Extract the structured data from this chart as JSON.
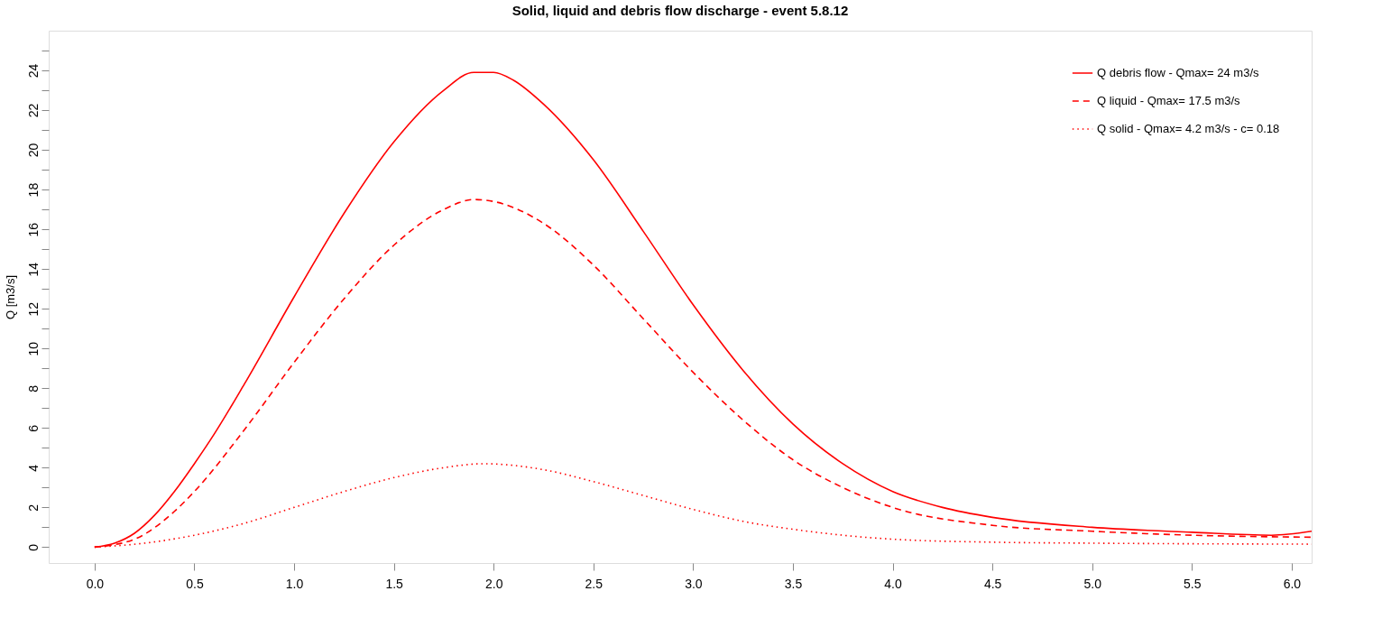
{
  "chart_data": {
    "type": "line",
    "title": "Solid, liquid and debris flow discharge - event 5.8.12",
    "ylabel": "Q [m3/s]",
    "xlim": [
      -0.23,
      6.1
    ],
    "xticks": [
      {
        "value": 0,
        "label": "0.0"
      },
      0.5,
      {
        "value": 1,
        "label": "1.0"
      },
      1.5,
      {
        "value": 2,
        "label": "2.0"
      },
      2.5,
      {
        "value": 3,
        "label": "3.0"
      },
      3.5,
      {
        "value": 4,
        "label": "4.0"
      },
      4.5,
      {
        "value": 5,
        "label": "5.0"
      },
      5.5,
      {
        "value": 6,
        "label": "6.0"
      }
    ],
    "ylim": [
      -0.8,
      26
    ],
    "yticks": [
      0,
      {
        "value": 1,
        "label": null
      },
      2,
      {
        "value": 3,
        "label": null
      },
      4,
      {
        "value": 5,
        "label": null
      },
      6,
      {
        "value": 7,
        "label": null
      },
      8,
      {
        "value": 9,
        "label": null
      },
      10,
      {
        "value": 11,
        "label": null
      },
      12,
      {
        "value": 13,
        "label": null
      },
      14,
      {
        "value": 15,
        "label": null
      },
      16,
      {
        "value": 17,
        "label": null
      },
      18,
      {
        "value": 19,
        "label": null
      },
      20,
      {
        "value": 21,
        "label": null
      },
      22,
      {
        "value": 23,
        "label": null
      },
      24,
      {
        "value": 25,
        "label": null
      }
    ],
    "grid": false,
    "legend": "top right",
    "series": [
      {
        "name": "Q debris flow - Qmax= 24 m3/s",
        "color": "#ff0000",
        "line_style": "solid",
        "x": [
          0,
          0.1,
          0.2,
          0.3,
          0.4,
          0.5,
          0.6,
          0.75,
          1.0,
          1.25,
          1.5,
          1.75,
          1.9,
          2.0,
          2.1,
          2.25,
          2.5,
          2.75,
          3.0,
          3.25,
          3.5,
          3.75,
          4.0,
          4.25,
          4.5,
          5.0,
          5.5,
          5.9,
          6.1
        ],
        "values": [
          0,
          0.2,
          0.7,
          1.6,
          2.8,
          4.2,
          5.7,
          8.2,
          12.6,
          16.8,
          20.4,
          23.0,
          23.9,
          23.9,
          23.5,
          22.3,
          19.5,
          15.9,
          12.2,
          8.9,
          6.2,
          4.2,
          2.8,
          2.0,
          1.5,
          1.0,
          0.75,
          0.6,
          0.8
        ]
      },
      {
        "name": "Q liquid - Qmax= 17.5 m3/s",
        "color": "#ff0000",
        "line_style": "dashed",
        "x": [
          0,
          0.2,
          0.4,
          0.5,
          0.75,
          1.0,
          1.25,
          1.5,
          1.75,
          1.9,
          2.0,
          2.25,
          2.5,
          2.75,
          3.0,
          3.25,
          3.5,
          3.75,
          4.0,
          4.5,
          5.0,
          5.5,
          6.1
        ],
        "values": [
          0,
          0.4,
          1.8,
          2.8,
          5.9,
          9.3,
          12.5,
          15.2,
          17.0,
          17.5,
          17.4,
          16.3,
          14.2,
          11.5,
          8.8,
          6.4,
          4.4,
          3.0,
          2.0,
          1.1,
          0.8,
          0.6,
          0.5
        ]
      },
      {
        "name": "Q solid - Qmax= 4.2 m3/s - c= 0.18",
        "color": "#ff0000",
        "line_style": "dotted",
        "x": [
          0,
          0.25,
          0.5,
          0.75,
          1.0,
          1.25,
          1.5,
          1.75,
          1.95,
          2.25,
          2.5,
          2.75,
          3.0,
          3.25,
          3.5,
          4.0,
          4.5,
          5.0,
          6.1
        ],
        "values": [
          0,
          0.2,
          0.6,
          1.2,
          2.0,
          2.8,
          3.5,
          4.0,
          4.2,
          3.9,
          3.3,
          2.6,
          1.9,
          1.3,
          0.9,
          0.4,
          0.25,
          0.2,
          0.15
        ]
      }
    ]
  }
}
